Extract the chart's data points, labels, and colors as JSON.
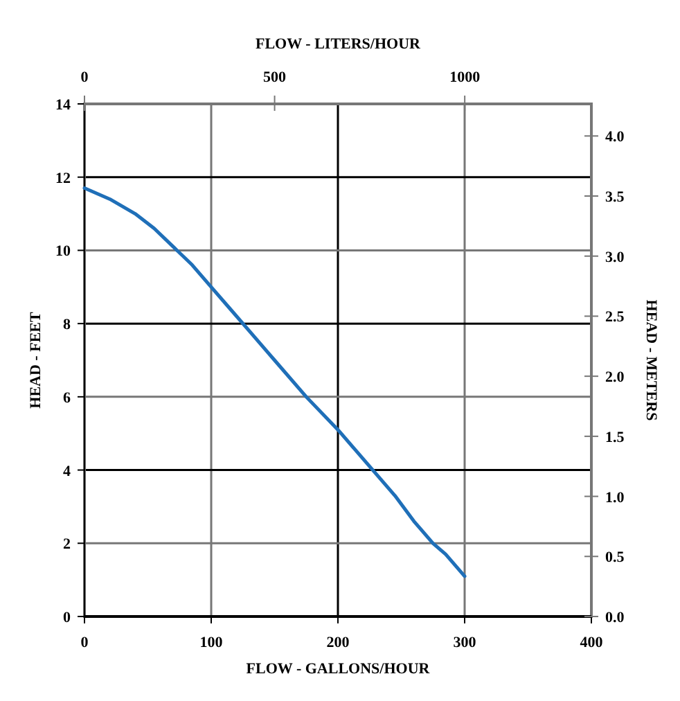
{
  "chart_data": {
    "type": "line",
    "xlabel": "FLOW - GALLONS/HOUR",
    "ylabel": "HEAD - FEET",
    "x2label": "FLOW - LITERS/HOUR",
    "y2label": "HEAD - METERS",
    "x": [
      0,
      20,
      40,
      55,
      70,
      85,
      100,
      115,
      130,
      150,
      175,
      200,
      215,
      230,
      245,
      260,
      275,
      285,
      300
    ],
    "series": [
      {
        "color": "#1f6fb8",
        "values": [
          11.7,
          11.4,
          11.0,
          10.6,
          10.1,
          9.6,
          9.0,
          8.4,
          7.8,
          7.0,
          6.0,
          5.1,
          4.5,
          3.9,
          3.3,
          2.6,
          2.0,
          1.7,
          1.1
        ]
      }
    ],
    "xlim": [
      0,
      400
    ],
    "xticks": [
      0,
      100,
      200,
      300,
      400
    ],
    "ylim": [
      0,
      14
    ],
    "yticks": [
      0,
      2,
      4,
      6,
      8,
      10,
      12,
      14
    ],
    "x2lim": [
      0,
      1333
    ],
    "x2ticks": [
      0,
      500,
      1000
    ],
    "y2lim": [
      0,
      4.267
    ],
    "y2ticks": [
      {
        "value": 0,
        "label": "0.0"
      },
      {
        "value": 0.5,
        "label": "0.5"
      },
      {
        "value": 1,
        "label": "1.0"
      },
      {
        "value": 1.5,
        "label": "1.5"
      },
      {
        "value": 2,
        "label": "2.0"
      },
      {
        "value": 2.5,
        "label": "2.5"
      },
      {
        "value": 3,
        "label": "3.0"
      },
      {
        "value": 3.5,
        "label": "3.5"
      },
      {
        "value": 4,
        "label": "4.0"
      }
    ],
    "grid": true,
    "marker": "none",
    "line_style": "solid"
  }
}
